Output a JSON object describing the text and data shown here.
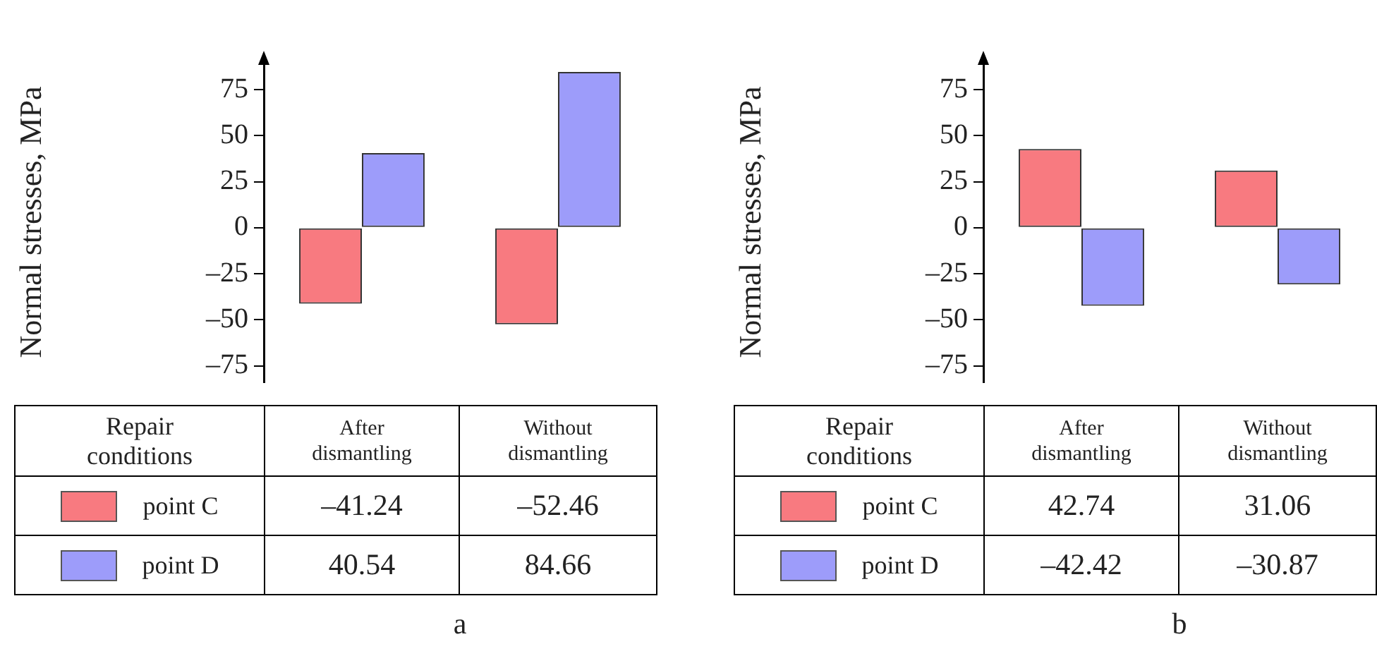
{
  "chart_data": [
    {
      "type": "bar",
      "ylabel": "Normal stresses, MPa",
      "legend_title": "Repair conditions",
      "legend": "bottom",
      "categories": [
        "After dismantling",
        "Without dismantling"
      ],
      "series": [
        {
          "name": "point C",
          "color": "#f87a80",
          "values": [
            -41.24,
            -52.46
          ],
          "value_labels": [
            "–41.24",
            "–52.46"
          ]
        },
        {
          "name": "point D",
          "color": "#9d9cfa",
          "values": [
            40.54,
            84.66
          ],
          "value_labels": [
            "40.54",
            "84.66"
          ]
        }
      ],
      "ylim": [
        -84,
        90
      ],
      "yticks": [
        {
          "value": -75,
          "label": "–75"
        },
        {
          "value": -50,
          "label": "–50"
        },
        {
          "value": -25,
          "label": "–25"
        },
        0,
        25,
        50,
        75
      ],
      "grid": false,
      "tick_labels": "y",
      "annotations": [
        "a"
      ]
    },
    {
      "type": "bar",
      "ylabel": "Normal stresses, MPa",
      "legend_title": "Repair conditions",
      "legend": "bottom",
      "categories": [
        "After dismantling",
        "Without dismantling"
      ],
      "series": [
        {
          "name": "point C",
          "color": "#f87a80",
          "values": [
            42.74,
            31.06
          ],
          "value_labels": [
            "42.74",
            "31.06"
          ]
        },
        {
          "name": "point D",
          "color": "#9d9cfa",
          "values": [
            -42.42,
            -30.87
          ],
          "value_labels": [
            "–42.42",
            "–30.87"
          ]
        }
      ],
      "ylim": [
        -84,
        90
      ],
      "yticks": [
        {
          "value": -75,
          "label": "–75"
        },
        {
          "value": -50,
          "label": "–50"
        },
        {
          "value": -25,
          "label": "–25"
        },
        0,
        25,
        50,
        75
      ],
      "grid": false,
      "tick_labels": "y",
      "annotations": [
        "b"
      ]
    }
  ]
}
